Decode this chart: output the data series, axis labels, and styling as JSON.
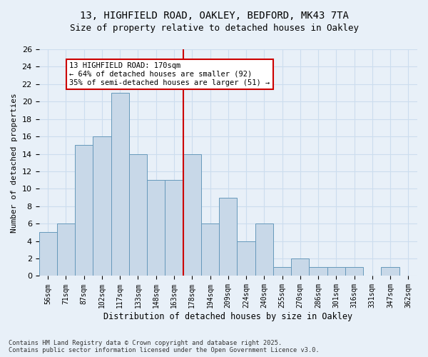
{
  "title_line1": "13, HIGHFIELD ROAD, OAKLEY, BEDFORD, MK43 7TA",
  "title_line2": "Size of property relative to detached houses in Oakley",
  "xlabel": "Distribution of detached houses by size in Oakley",
  "ylabel": "Number of detached properties",
  "categories": [
    "56sqm",
    "71sqm",
    "87sqm",
    "102sqm",
    "117sqm",
    "133sqm",
    "148sqm",
    "163sqm",
    "178sqm",
    "194sqm",
    "209sqm",
    "224sqm",
    "240sqm",
    "255sqm",
    "270sqm",
    "286sqm",
    "301sqm",
    "316sqm",
    "331sqm",
    "347sqm",
    "362sqm"
  ],
  "values": [
    5,
    6,
    15,
    16,
    21,
    14,
    11,
    11,
    14,
    6,
    9,
    4,
    6,
    1,
    2,
    1,
    1,
    1,
    0,
    1,
    0
  ],
  "bar_color": "#c8d8e8",
  "bar_edge_color": "#6699bb",
  "reference_line_x": 7.5,
  "reference_value": 170,
  "annotation_text": "13 HIGHFIELD ROAD: 170sqm\n← 64% of detached houses are smaller (92)\n35% of semi-detached houses are larger (51) →",
  "annotation_box_color": "#ffffff",
  "annotation_box_edge_color": "#cc0000",
  "vline_color": "#cc0000",
  "ylim": [
    0,
    26
  ],
  "yticks": [
    0,
    2,
    4,
    6,
    8,
    10,
    12,
    14,
    16,
    18,
    20,
    22,
    24,
    26
  ],
  "grid_color": "#ccddee",
  "background_color": "#e8f0f8",
  "footnote": "Contains HM Land Registry data © Crown copyright and database right 2025.\nContains public sector information licensed under the Open Government Licence v3.0."
}
